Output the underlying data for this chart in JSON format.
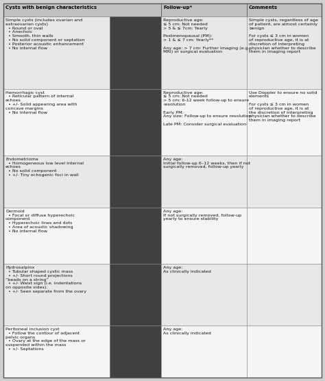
{
  "header_bg": "#c0c0c0",
  "row_bg_alt": "#e8e8e8",
  "row_bg_white": "#f5f5f5",
  "border_color": "#888888",
  "header_text_color": "#000000",
  "body_text_color": "#111111",
  "fig_bg": "#d0d0d0",
  "header": [
    "Cysts with benign characteristics",
    "Follow-up*",
    "Comments"
  ],
  "rows": [
    {
      "col1_title": "Simple cysts (includes ovarian and\nextraovarian cysts)",
      "col1_bullets": [
        "Round or oval",
        "Anechoic",
        "Smooth, thin walls",
        "No solid component or septation",
        "Posterior acoustic enhancement",
        "No internal flow"
      ],
      "col2": "Reproductive age:\n≤ 5 cm: Not needed\n> 5 & ≤ 7cm: Yearly\n\nPostmenopausal (PM):\n> 1 & ≤ 7 cm: Yearly**\n\nAny age: > 7 cm: Further imaging (e.g.,\nMRI) or surgical evaluation",
      "col3": "Simple cysts, regardless of age\nof patient, are almost certainly\nbenign\n\nFor cysts ≤ 3 cm in women\nof reproductive age, it is at\ndiscretion of interpreting\nphysician whether to describe\nthem in imaging report"
    },
    {
      "col1_title": "Hemorrhagic cyst",
      "col1_bullets": [
        "Reticular pattern of internal\nechoes",
        "+/- Solid appearing area with\nconcave margins",
        "No internal flow"
      ],
      "col2": "Reproductive age:\n≤ 5 cm: Not needed\n> 5 cm: 6-12 week follow-up to ensure\nresolution\n\nEarly PM:\nAny size: Follow-up to ensure resolution\n\nLate PM: Consider surgical evaluation",
      "col3": "Use Doppler to ensure no solid\nelements\n\nFor cysts ≤ 3 cm in women\nof reproductive age, it is at\nthe discretion of interpreting\nphysician whether to describe\nthem in imaging report"
    },
    {
      "col1_title": "Endometrioma",
      "col1_bullets": [
        "Homogeneous low level internal\nechoes",
        "No solid component",
        "+/- Tiny echogenic foci in wall"
      ],
      "col2": "Any age:\nInitial follow-up 6–12 weeks, then if not\nsurgically removed, follow-up yearly",
      "col3": ""
    },
    {
      "col1_title": "Dermoid",
      "col1_bullets": [
        "Focal or diffuse hyperechoic\ncomponent",
        "Hyperechoic lines and dots",
        "Area of acoustic shadowing",
        "No internal flow"
      ],
      "col2": "Any age:\nIf not surgically removed, follow-up\nyearly to ensure stability",
      "col3": ""
    },
    {
      "col1_title": "Hydrosalpinx",
      "col1_bullets": [
        "Tubular shaped cystic mass",
        "+/- Short round projections\n“beads on a string”",
        "+/- Waist sign (i.e. indentations\non opposite sides).",
        "+/- Seen separate from the ovary"
      ],
      "col2": "Any age:\nAs clinically indicated",
      "col3": ""
    },
    {
      "col1_title": "Peritoneal inclusion cyst",
      "col1_bullets": [
        "Follow the contour of adjacent\npelvic organs",
        "Ovary at the edge of the mass or\nsuspended within the mass",
        "+/- Septations"
      ],
      "col2": "Any age:\nAs clinically indicated",
      "col3": ""
    }
  ],
  "figsize": [
    4.74,
    5.56
  ],
  "dpi": 100
}
